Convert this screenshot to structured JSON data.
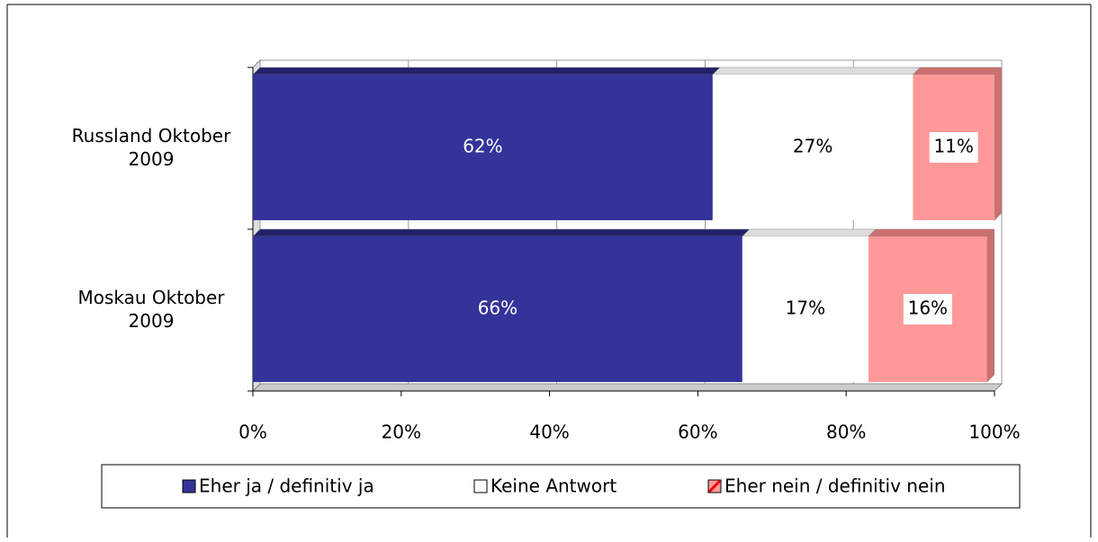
{
  "chart_data": {
    "type": "stacked_barh",
    "categories": [
      "Russland Oktober 2009",
      "Moskau Oktober 2009"
    ],
    "series": [
      {
        "name": "Eher ja / definitiv ja",
        "color": "#333399",
        "values": [
          62,
          66
        ],
        "value_labels": [
          "62%",
          "66%"
        ]
      },
      {
        "name": "Keine Antwort",
        "color": "#ffffff",
        "values": [
          27,
          17
        ],
        "value_labels": [
          "27%",
          "17%"
        ]
      },
      {
        "name": "Eher nein / definitiv nein",
        "color": "#ff9999",
        "values": [
          11,
          16
        ],
        "value_labels": [
          "11%",
          "16%"
        ]
      }
    ],
    "xlim": [
      0,
      100
    ],
    "xticks": [
      {
        "value": 0,
        "label": "0%"
      },
      {
        "value": 20,
        "label": "20%"
      },
      {
        "value": 40,
        "label": "40%"
      },
      {
        "value": 60,
        "label": "60%"
      },
      {
        "value": 80,
        "label": "80%"
      },
      {
        "value": 100,
        "label": "100%"
      }
    ],
    "grid": true,
    "legend": "bottom"
  }
}
